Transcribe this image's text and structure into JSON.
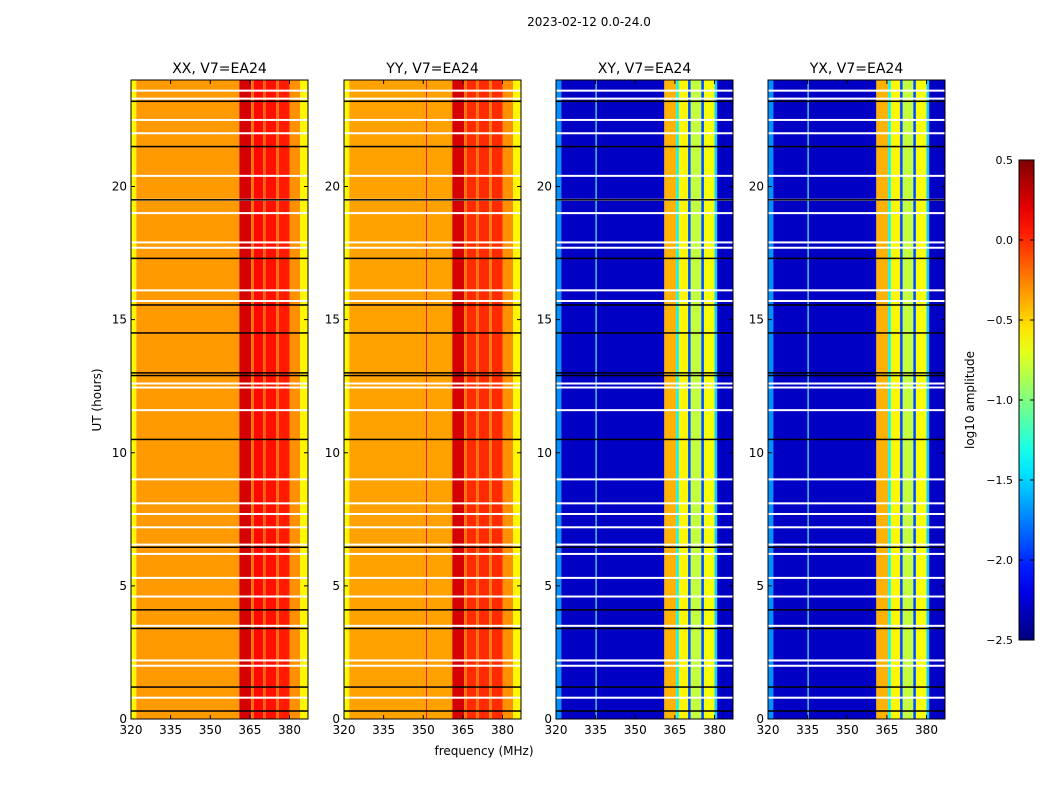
{
  "chart_data": {
    "type": "heatmap",
    "title": "2023-02-12 0.0-24.0",
    "xlabel": "frequency (MHz)",
    "ylabel": "UT (hours)",
    "xlim": [
      320,
      387
    ],
    "ylim": [
      0,
      24
    ],
    "xticks": [
      "320",
      "335",
      "350",
      "365",
      "380"
    ],
    "yticks": [
      "0",
      "5",
      "10",
      "15",
      "20"
    ],
    "colorbar": {
      "label": "log10 amplitude",
      "range": [
        -2.5,
        0.5
      ],
      "ticks": [
        "0.5",
        "0.0",
        "−0.5",
        "−1.0",
        "−1.5",
        "−2.0",
        "−2.5"
      ],
      "colormap": "jet"
    },
    "flagged_hours_white": [
      0.8,
      2.0,
      2.2,
      3.5,
      4.6,
      5.3,
      6.2,
      6.55,
      7.2,
      7.7,
      8.1,
      9.0,
      11.6,
      12.45,
      12.6,
      15.7,
      16.1,
      17.7,
      17.9,
      19.0,
      19.5,
      20.4,
      22.0,
      22.5,
      23.3,
      23.6
    ],
    "flagged_hours_black": [
      0.3,
      1.2,
      3.4,
      4.1,
      6.45,
      10.5,
      12.9,
      13.0,
      14.5,
      15.55,
      17.3,
      19.5,
      21.5,
      23.2
    ],
    "panels": [
      {
        "title": "XX, V7=EA24",
        "columns": [
          {
            "f0": 320,
            "f1": 322,
            "value": -0.6
          },
          {
            "f0": 322,
            "f1": 361,
            "value": -0.33
          },
          {
            "f0": 361,
            "f1": 365.5,
            "value": 0.25
          },
          {
            "f0": 365.5,
            "f1": 366.5,
            "value": -0.2
          },
          {
            "f0": 366.5,
            "f1": 370,
            "value": 0.1
          },
          {
            "f0": 370,
            "f1": 371,
            "value": -0.15
          },
          {
            "f0": 371,
            "f1": 375,
            "value": 0.08
          },
          {
            "f0": 375,
            "f1": 376,
            "value": -0.2
          },
          {
            "f0": 376,
            "f1": 380,
            "value": 0.05
          },
          {
            "f0": 380,
            "f1": 384,
            "value": -0.3
          },
          {
            "f0": 384,
            "f1": 387,
            "value": -0.6
          }
        ]
      },
      {
        "title": "YY, V7=EA24",
        "columns": [
          {
            "f0": 320,
            "f1": 322,
            "value": -0.6
          },
          {
            "f0": 322,
            "f1": 351,
            "value": -0.35
          },
          {
            "f0": 351,
            "f1": 351.5,
            "value": 0.05
          },
          {
            "f0": 351.5,
            "f1": 361,
            "value": -0.35
          },
          {
            "f0": 361,
            "f1": 365.5,
            "value": 0.25
          },
          {
            "f0": 365.5,
            "f1": 366.5,
            "value": -0.2
          },
          {
            "f0": 366.5,
            "f1": 370,
            "value": 0.0
          },
          {
            "f0": 370,
            "f1": 371,
            "value": -0.2
          },
          {
            "f0": 371,
            "f1": 375,
            "value": 0.0
          },
          {
            "f0": 375,
            "f1": 376,
            "value": -0.25
          },
          {
            "f0": 376,
            "f1": 380,
            "value": 0.0
          },
          {
            "f0": 380,
            "f1": 384,
            "value": -0.3
          },
          {
            "f0": 384,
            "f1": 387,
            "value": -0.6
          }
        ]
      },
      {
        "title": "XY, V7=EA24",
        "columns": [
          {
            "f0": 320,
            "f1": 322,
            "value": -1.7
          },
          {
            "f0": 322,
            "f1": 335,
            "value": -2.3
          },
          {
            "f0": 335,
            "f1": 335.4,
            "value": -1.2
          },
          {
            "f0": 335.4,
            "f1": 361,
            "value": -2.3
          },
          {
            "f0": 361,
            "f1": 365.5,
            "value": -0.4
          },
          {
            "f0": 365.5,
            "f1": 366.5,
            "value": -1.4
          },
          {
            "f0": 366.5,
            "f1": 370,
            "value": -0.6
          },
          {
            "f0": 370,
            "f1": 371,
            "value": -1.9
          },
          {
            "f0": 371,
            "f1": 375,
            "value": -0.8
          },
          {
            "f0": 375,
            "f1": 376,
            "value": -1.9
          },
          {
            "f0": 376,
            "f1": 380,
            "value": -0.65
          },
          {
            "f0": 380,
            "f1": 381,
            "value": -1.5
          },
          {
            "f0": 381,
            "f1": 387,
            "value": -2.3
          }
        ]
      },
      {
        "title": "YX, V7=EA24",
        "columns": [
          {
            "f0": 320,
            "f1": 322,
            "value": -1.7
          },
          {
            "f0": 322,
            "f1": 335,
            "value": -2.3
          },
          {
            "f0": 335,
            "f1": 335.4,
            "value": -1.2
          },
          {
            "f0": 335.4,
            "f1": 361,
            "value": -2.3
          },
          {
            "f0": 361,
            "f1": 365.5,
            "value": -0.4
          },
          {
            "f0": 365.5,
            "f1": 366.5,
            "value": -1.4
          },
          {
            "f0": 366.5,
            "f1": 370,
            "value": -0.6
          },
          {
            "f0": 370,
            "f1": 371,
            "value": -1.9
          },
          {
            "f0": 371,
            "f1": 375,
            "value": -0.8
          },
          {
            "f0": 375,
            "f1": 376,
            "value": -1.9
          },
          {
            "f0": 376,
            "f1": 380,
            "value": -0.65
          },
          {
            "f0": 380,
            "f1": 381,
            "value": -1.5
          },
          {
            "f0": 381,
            "f1": 387,
            "value": -2.3
          }
        ]
      }
    ]
  }
}
